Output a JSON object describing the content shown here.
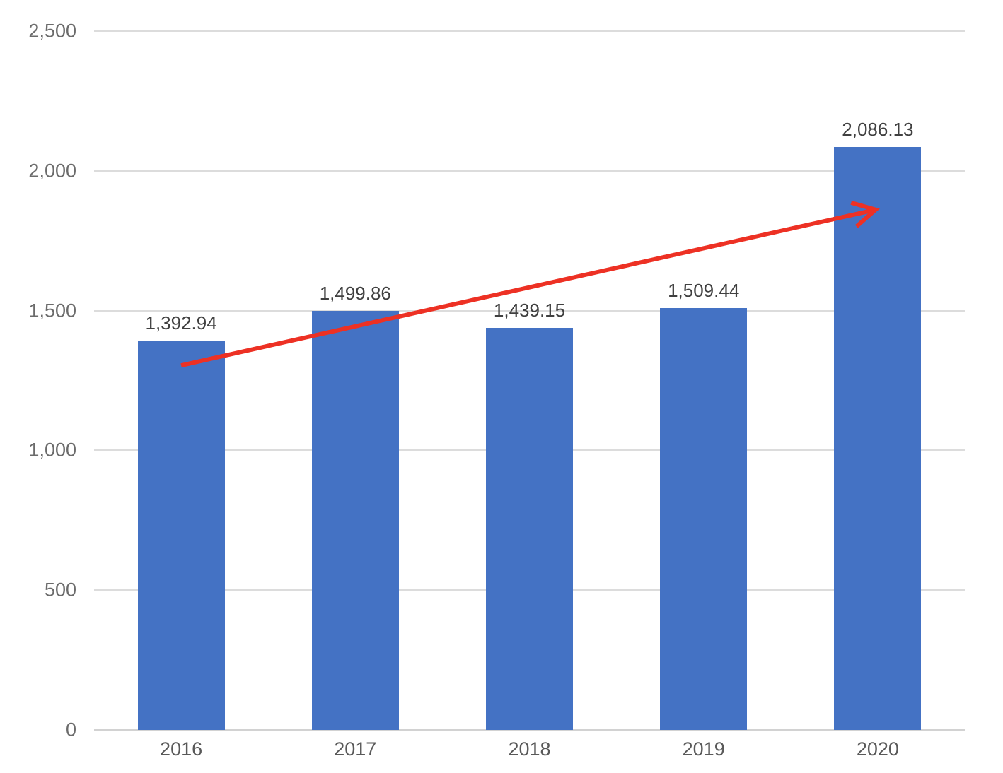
{
  "chart_data": {
    "type": "bar",
    "title": "",
    "categories": [
      "2016",
      "2017",
      "2018",
      "2019",
      "2020"
    ],
    "values": [
      1392.94,
      1499.86,
      1439.15,
      1509.44,
      2086.13
    ],
    "data_labels": [
      "1,392.94",
      "1,499.86",
      "1,439.15",
      "1,509.44",
      "2,086.13"
    ],
    "y_ticks": [
      0,
      500,
      1000,
      1500,
      2000,
      2500
    ],
    "y_tick_labels": [
      "0",
      "500",
      "1,000",
      "1,500",
      "2,000",
      "2,500"
    ],
    "ylim": [
      0,
      2500
    ],
    "xlabel": "",
    "ylabel": "",
    "grid": true,
    "legend": "none",
    "colors": {
      "bar": "#4472C4",
      "gridline": "#DCDCDC",
      "axis_line": "#D2D2D2",
      "tick_text": "#6B6B6B",
      "data_label_text": "#404040",
      "x_label_text": "#595959",
      "arrow": "#ED3124",
      "background": "#FFFFFF"
    },
    "annotation_arrow": {
      "description": "red trend arrow from 2016 bar to 2020 bar",
      "from": {
        "category_index": 0,
        "value": 1304
      },
      "to": {
        "category_index": 4,
        "value": 1861
      }
    }
  }
}
